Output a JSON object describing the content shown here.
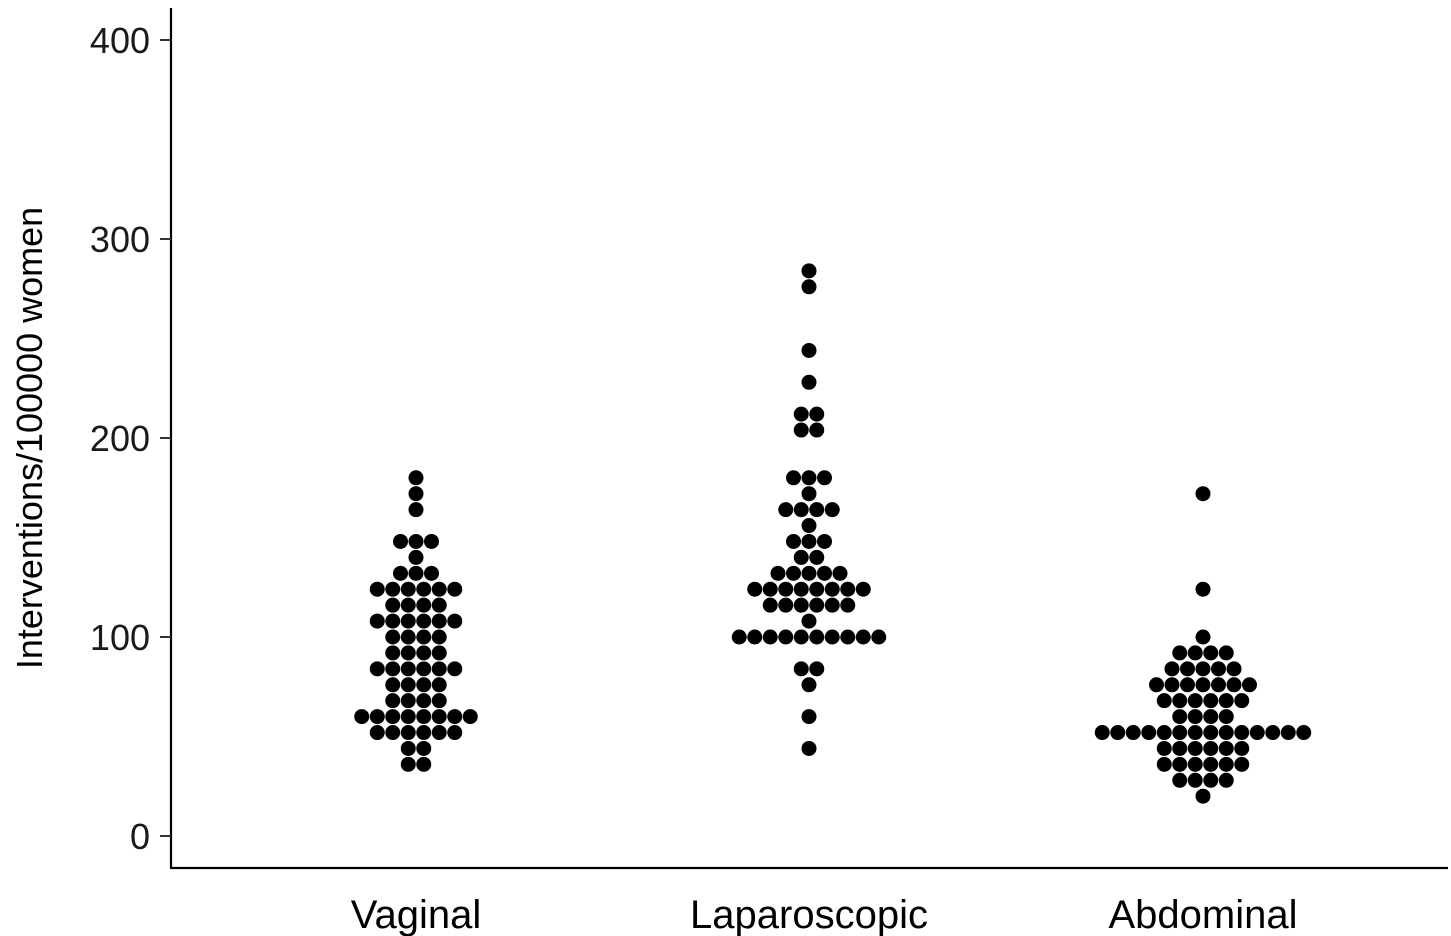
{
  "chart_data": {
    "type": "scatter",
    "subtype": "dotplot",
    "title": "",
    "xlabel": "",
    "ylabel": "Interventions/100000 women",
    "ylim": [
      0,
      415
    ],
    "yticks": [
      0,
      100,
      200,
      300,
      400
    ],
    "grid": false,
    "categories": [
      "Vaginal",
      "Laparoscopic",
      "Abdominal"
    ],
    "dot_color": "#000000",
    "series": [
      {
        "category": "Vaginal",
        "values": [
          36,
          36,
          44,
          44,
          52,
          52,
          52,
          52,
          52,
          52,
          60,
          60,
          60,
          60,
          60,
          60,
          60,
          60,
          68,
          68,
          68,
          68,
          76,
          76,
          76,
          76,
          84,
          84,
          84,
          84,
          84,
          84,
          92,
          92,
          92,
          92,
          100,
          100,
          100,
          100,
          108,
          108,
          108,
          108,
          108,
          108,
          116,
          116,
          116,
          116,
          124,
          124,
          124,
          124,
          124,
          124,
          132,
          132,
          132,
          140,
          148,
          148,
          148,
          164,
          172,
          180
        ]
      },
      {
        "category": "Laparoscopic",
        "values": [
          44,
          60,
          76,
          84,
          84,
          100,
          100,
          100,
          100,
          100,
          100,
          100,
          100,
          100,
          100,
          108,
          116,
          116,
          116,
          116,
          116,
          116,
          124,
          124,
          124,
          124,
          124,
          124,
          124,
          124,
          132,
          132,
          132,
          132,
          132,
          140,
          140,
          148,
          148,
          148,
          156,
          164,
          164,
          164,
          164,
          172,
          180,
          180,
          180,
          204,
          204,
          212,
          212,
          228,
          244,
          276,
          284
        ]
      },
      {
        "category": "Abdominal",
        "values": [
          20,
          28,
          28,
          28,
          28,
          36,
          36,
          36,
          36,
          36,
          36,
          44,
          44,
          44,
          44,
          44,
          44,
          52,
          52,
          52,
          52,
          52,
          52,
          52,
          52,
          52,
          52,
          52,
          52,
          52,
          52,
          60,
          60,
          60,
          60,
          68,
          68,
          68,
          68,
          68,
          68,
          76,
          76,
          76,
          76,
          76,
          76,
          76,
          84,
          84,
          84,
          84,
          84,
          92,
          92,
          92,
          92,
          100,
          124,
          172
        ]
      }
    ]
  }
}
